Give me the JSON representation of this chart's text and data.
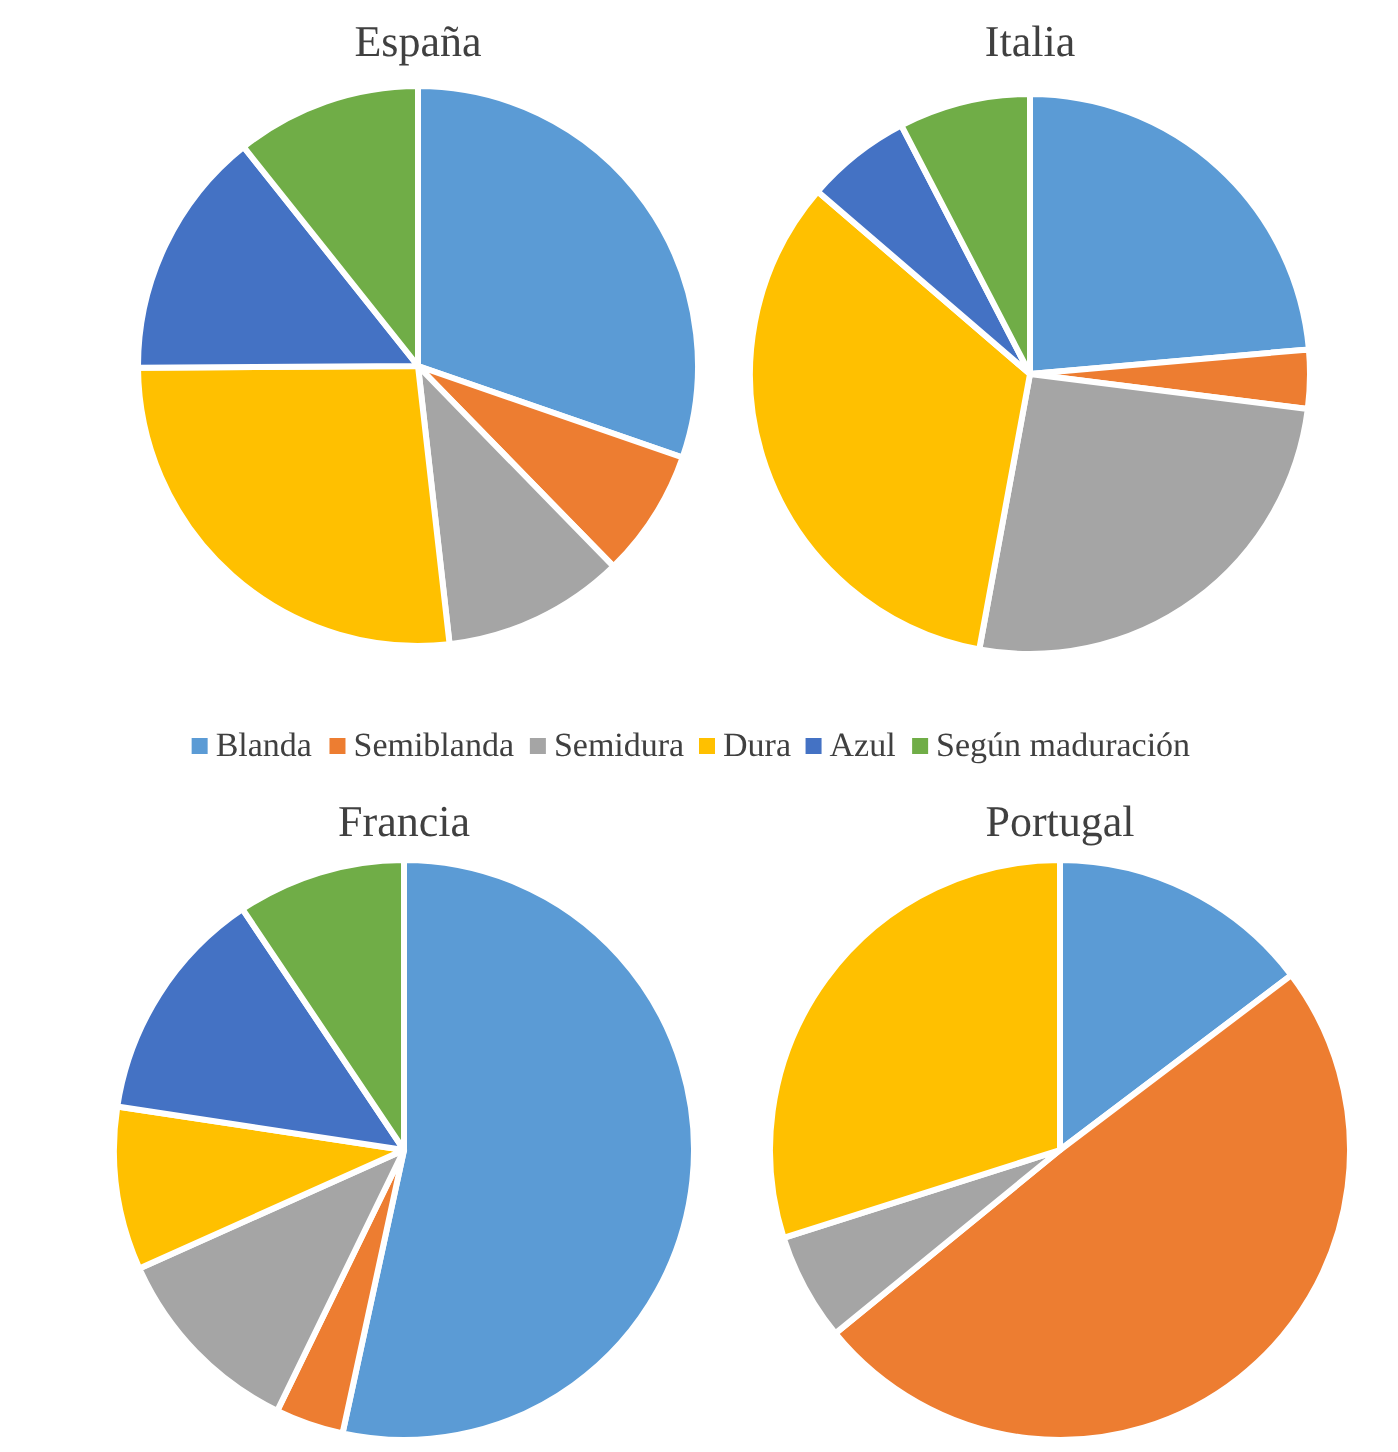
{
  "chart_data": [
    {
      "type": "pie",
      "title": "España",
      "categories": [
        "Blanda",
        "Semiblanda",
        "Semidura",
        "Dura",
        "Azul",
        "Según maduración"
      ],
      "values": [
        30.3,
        7.4,
        10.5,
        26.7,
        14.4,
        10.7
      ],
      "colors": [
        "#5b9bd5",
        "#ed7d31",
        "#a5a5a5",
        "#ffc000",
        "#4472c4",
        "#70ad47"
      ],
      "legend": "bottom"
    },
    {
      "type": "pie",
      "title": "Italia",
      "categories": [
        null,
        null,
        null,
        null,
        null,
        null
      ],
      "values": [
        23.6,
        3.4,
        25.9,
        33.4,
        6.1,
        7.6
      ],
      "colors": [
        "#5b9bd5",
        "#ed7d31",
        "#a5a5a5",
        "#ffc000",
        "#4472c4",
        "#70ad47"
      ]
    },
    {
      "type": "pie",
      "title": "Francia",
      "categories": [
        null,
        null,
        null,
        null,
        null,
        null
      ],
      "values": [
        53.4,
        3.8,
        11.1,
        9.1,
        13.2,
        9.4
      ],
      "colors": [
        "#5b9bd5",
        "#ed7d31",
        "#a5a5a5",
        "#ffc000",
        "#4472c4",
        "#70ad47"
      ]
    },
    {
      "type": "pie",
      "title": "Portugal",
      "categories": [
        null,
        null,
        null,
        null
      ],
      "values": [
        14.7,
        49.4,
        6.0,
        29.9
      ],
      "colors": [
        "#5b9bd5",
        "#ed7d31",
        "#a5a5a5",
        "#ffc000"
      ]
    }
  ]
}
